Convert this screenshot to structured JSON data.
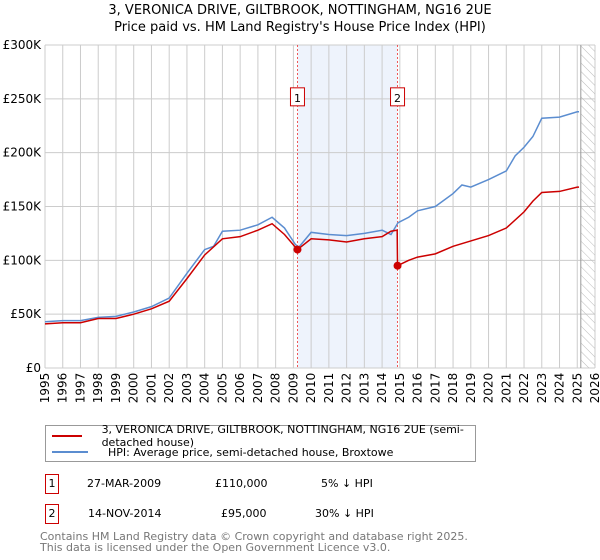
{
  "title": "3, VERONICA DRIVE, GILTBROOK, NOTTINGHAM, NG16 2UE",
  "subtitle": "Price paid vs. HM Land Registry's House Price Index (HPI)",
  "colors": {
    "property": "#cc0000",
    "hpi": "#5b8dd0",
    "shade": "#eef3fc"
  },
  "chart_data": {
    "type": "line",
    "title": "3, VERONICA DRIVE, GILTBROOK, NOTTINGHAM, NG16 2UE",
    "xlim": [
      1995,
      2026
    ],
    "ylim": [
      0,
      300000
    ],
    "yticks": [
      0,
      50000,
      100000,
      150000,
      200000,
      250000,
      300000
    ],
    "ytick_labels": [
      "£0",
      "£50K",
      "£100K",
      "£150K",
      "£200K",
      "£250K",
      "£300K"
    ],
    "xticks": [
      "1995",
      "1996",
      "1997",
      "1998",
      "1999",
      "2000",
      "2001",
      "2002",
      "2003",
      "2004",
      "2005",
      "2006",
      "2007",
      "2008",
      "2009",
      "2010",
      "2011",
      "2012",
      "2013",
      "2014",
      "2015",
      "2016",
      "2017",
      "2018",
      "2019",
      "2020",
      "2021",
      "2022",
      "2023",
      "2024",
      "2025",
      "2026"
    ],
    "grid": true,
    "shaded_range": [
      2009.23,
      2014.87
    ],
    "future_hatch_from": 2025.2,
    "series": [
      {
        "name": "3, VERONICA DRIVE, GILTBROOK, NOTTINGHAM, NG16 2UE (semi-detached house)",
        "x": [
          1995,
          1996,
          1997,
          1998,
          1999,
          2000,
          2001,
          2002,
          2003,
          2004,
          2005,
          2006,
          2007,
          2007.8,
          2008.5,
          2009.23,
          2010,
          2011,
          2012,
          2013,
          2014,
          2014.5,
          2014.85,
          2014.87,
          2015.5,
          2016,
          2017,
          2018,
          2019,
          2020,
          2021,
          2022,
          2022.5,
          2023,
          2024,
          2025,
          2025.1
        ],
        "y": [
          41000,
          42000,
          42000,
          46000,
          46000,
          50000,
          55000,
          62000,
          83000,
          105000,
          120000,
          122000,
          128000,
          134000,
          124000,
          110000,
          120000,
          119000,
          117000,
          120000,
          122000,
          127000,
          128000,
          95000,
          100000,
          103000,
          106000,
          113000,
          118000,
          123000,
          130000,
          145000,
          155000,
          163000,
          164000,
          168000,
          168000
        ]
      },
      {
        "name": "HPI: Average price, semi-detached house, Broxtowe",
        "x": [
          1995,
          1996,
          1997,
          1998,
          1999,
          2000,
          2001,
          2002,
          2003,
          2004,
          2004.5,
          2005,
          2006,
          2007,
          2007.8,
          2008.5,
          2009.1,
          2009.3,
          2010,
          2011,
          2012,
          2013,
          2014,
          2014.5,
          2014.9,
          2015.5,
          2016,
          2017,
          2018,
          2018.5,
          2019,
          2020,
          2021,
          2021.5,
          2022,
          2022.5,
          2023,
          2024,
          2025,
          2025.1
        ],
        "y": [
          43000,
          44000,
          44000,
          47000,
          48000,
          52000,
          57000,
          65000,
          88000,
          110000,
          113000,
          127000,
          128000,
          133000,
          140000,
          130000,
          115000,
          112000,
          126000,
          124000,
          123000,
          125000,
          128000,
          124000,
          135000,
          140000,
          146000,
          150000,
          162000,
          170000,
          168000,
          175000,
          183000,
          197000,
          205000,
          215000,
          232000,
          233000,
          238000,
          238000
        ]
      }
    ],
    "sales": [
      {
        "label": "1",
        "x": 2009.23,
        "y": 110000
      },
      {
        "label": "2",
        "x": 2014.87,
        "y": 95000
      }
    ]
  },
  "legend": {
    "property": "3, VERONICA DRIVE, GILTBROOK, NOTTINGHAM, NG16 2UE (semi-detached house)",
    "hpi": "HPI: Average price, semi-detached house, Broxtowe"
  },
  "transactions": [
    {
      "num": "1",
      "date": "27-MAR-2009",
      "price": "£110,000",
      "diff": "5% ↓ HPI"
    },
    {
      "num": "2",
      "date": "14-NOV-2014",
      "price": "£95,000",
      "diff": "30% ↓ HPI"
    }
  ],
  "footer": [
    "Contains HM Land Registry data © Crown copyright and database right 2025.",
    "This data is licensed under the Open Government Licence v3.0."
  ]
}
